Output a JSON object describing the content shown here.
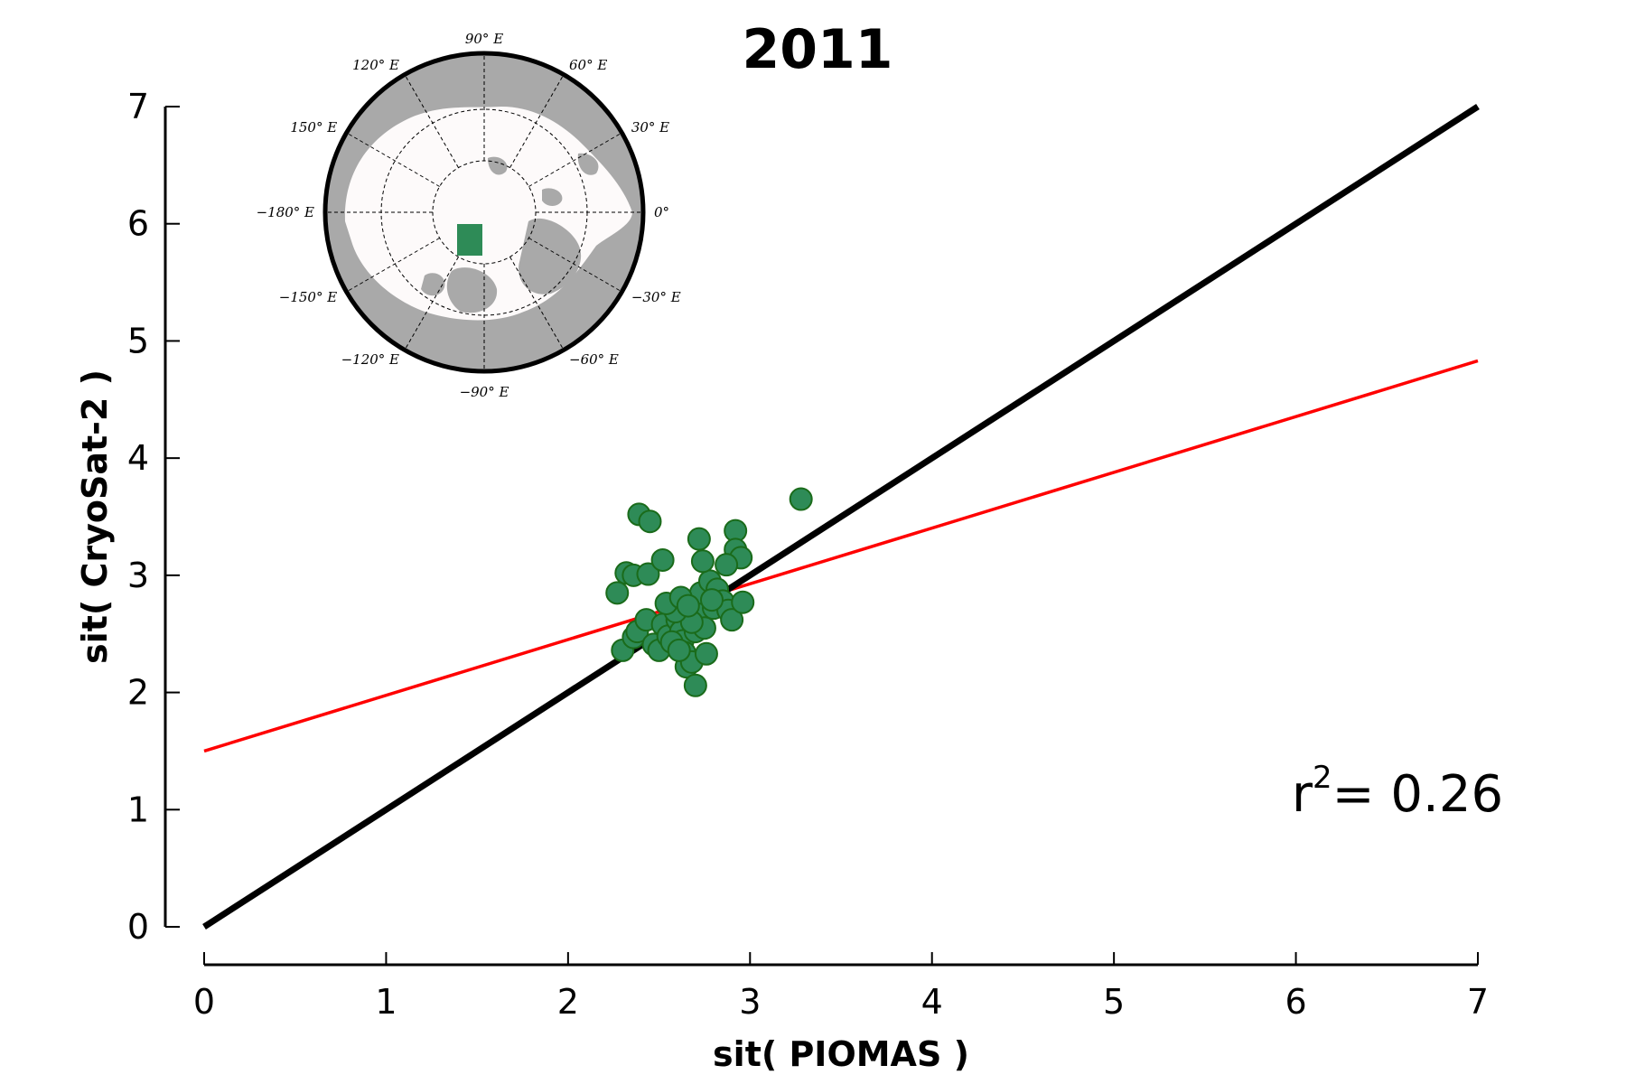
{
  "chart_data": {
    "type": "scatter",
    "title": "2011",
    "xlabel": "sit( PIOMAS )",
    "ylabel": "sit( CryoSat-2 )",
    "xlim": [
      0,
      7
    ],
    "ylim": [
      0,
      7
    ],
    "x_ticks": [
      "0",
      "1",
      "2",
      "3",
      "4",
      "5",
      "6",
      "7"
    ],
    "y_ticks": [
      "0",
      "1",
      "2",
      "3",
      "4",
      "5",
      "6",
      "7"
    ],
    "grid": false,
    "point_color": "#2e8b57",
    "point_edge_color": "#1a6b1a",
    "points": [
      [
        2.27,
        2.85
      ],
      [
        2.32,
        3.02
      ],
      [
        2.36,
        3.0
      ],
      [
        2.39,
        3.52
      ],
      [
        2.45,
        3.46
      ],
      [
        2.44,
        3.01
      ],
      [
        2.52,
        3.13
      ],
      [
        2.72,
        3.31
      ],
      [
        2.92,
        3.38
      ],
      [
        2.92,
        3.22
      ],
      [
        2.95,
        3.15
      ],
      [
        3.28,
        3.65
      ],
      [
        2.3,
        2.36
      ],
      [
        2.36,
        2.47
      ],
      [
        2.38,
        2.52
      ],
      [
        2.43,
        2.62
      ],
      [
        2.47,
        2.41
      ],
      [
        2.5,
        2.36
      ],
      [
        2.52,
        2.58
      ],
      [
        2.55,
        2.48
      ],
      [
        2.58,
        2.75
      ],
      [
        2.6,
        2.62
      ],
      [
        2.62,
        2.52
      ],
      [
        2.63,
        2.44
      ],
      [
        2.64,
        2.34
      ],
      [
        2.65,
        2.22
      ],
      [
        2.68,
        2.26
      ],
      [
        2.7,
        2.06
      ],
      [
        2.7,
        2.52
      ],
      [
        2.72,
        2.68
      ],
      [
        2.73,
        2.85
      ],
      [
        2.75,
        2.55
      ],
      [
        2.76,
        2.33
      ],
      [
        2.78,
        2.95
      ],
      [
        2.8,
        2.72
      ],
      [
        2.82,
        2.88
      ],
      [
        2.85,
        2.78
      ],
      [
        2.88,
        2.7
      ],
      [
        2.9,
        2.62
      ],
      [
        2.74,
        3.12
      ],
      [
        2.87,
        3.09
      ],
      [
        2.96,
        2.77
      ],
      [
        2.68,
        2.6
      ],
      [
        2.59,
        2.69
      ],
      [
        2.54,
        2.76
      ],
      [
        2.62,
        2.81
      ],
      [
        2.57,
        2.43
      ],
      [
        2.66,
        2.74
      ],
      [
        2.61,
        2.36
      ],
      [
        2.79,
        2.79
      ]
    ],
    "lines": [
      {
        "x": [
          0,
          7
        ],
        "y": [
          0,
          7
        ],
        "color": "#000000"
      },
      {
        "x": [
          0,
          7
        ],
        "y": [
          1.5,
          4.83
        ],
        "color": "#ff0000"
      }
    ],
    "annotation": {
      "prefix": "r",
      "superscript": "2",
      "text": "= 0.26"
    }
  },
  "inset_map": {
    "projection": "north-polar-stereographic",
    "land_color": "#a9a9a9",
    "ocean_color": "#fdfafa",
    "region_color": "#2e8b57",
    "lon_labels": [
      "90° E",
      "60° E",
      "30° E",
      "0°",
      "−30° E",
      "−60° E",
      "−90° E",
      "−120° E",
      "−150° E",
      "−180° E",
      "150° E",
      "120° E"
    ]
  }
}
